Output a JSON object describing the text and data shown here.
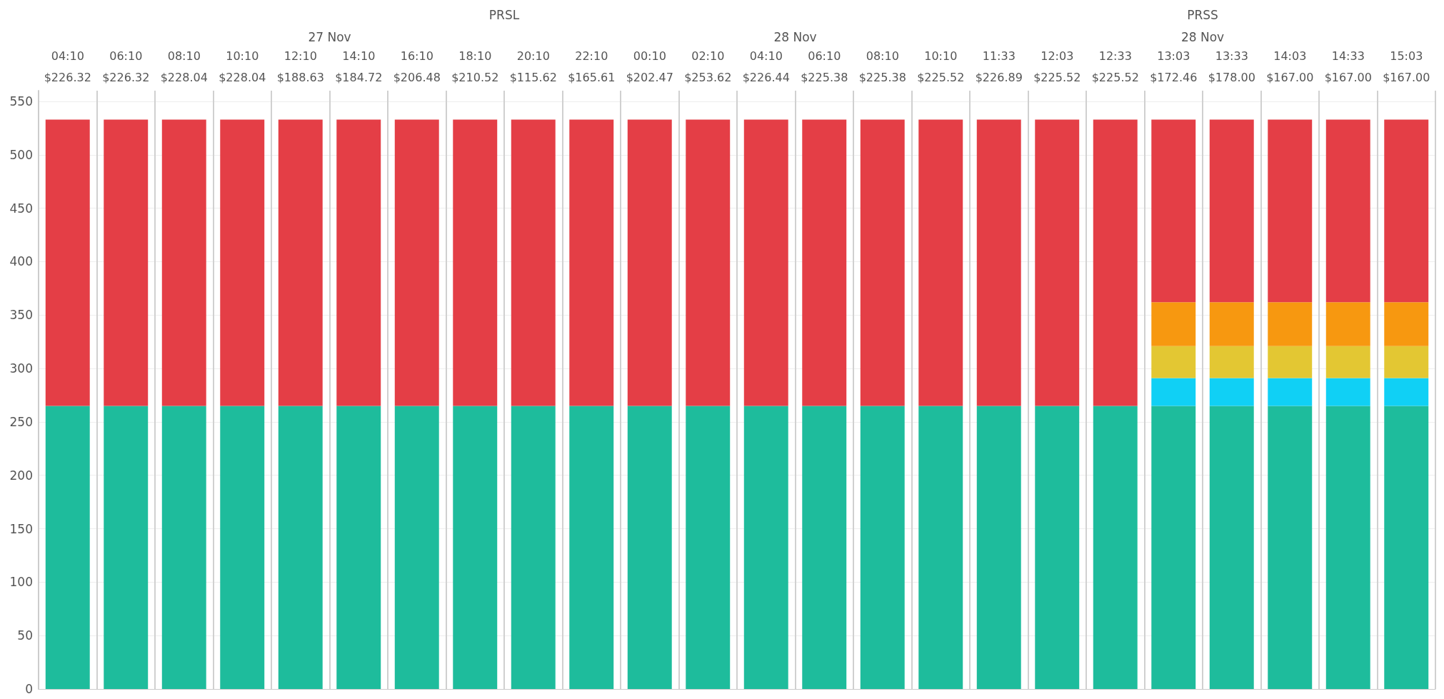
{
  "chart_data": {
    "type": "bar",
    "stacked": true,
    "grid": true,
    "categories": [
      "04:10\n$226.32",
      "06:10\n$226.32",
      "08:10\n$228.04",
      "10:10\n$228.04",
      "12:10\n$188.63",
      "14:10\n$184.72",
      "16:10\n$206.48",
      "18:10\n$210.52",
      "20:10\n$115.62",
      "22:10\n$165.61",
      "00:10\n$202.47",
      "02:10\n$253.62",
      "04:10\n$226.44",
      "06:10\n$225.38",
      "08:10\n$225.38",
      "10:10\n$225.52",
      "11:33\n$226.89",
      "12:03\n$225.52",
      "12:33\n$225.52",
      "13:03\n$172.46",
      "13:33\n$178.00",
      "14:03\n$167.00",
      "14:33\n$167.00",
      "15:03\n$167.00"
    ],
    "series": [
      {
        "color": "#1ebc9c",
        "values": [
          265,
          265,
          265,
          265,
          265,
          265,
          265,
          265,
          265,
          265,
          265,
          265,
          265,
          265,
          265,
          265,
          265,
          265,
          265,
          265,
          265,
          265,
          265,
          265
        ]
      },
      {
        "color": "#10d0f5",
        "values": [
          null,
          null,
          null,
          null,
          null,
          null,
          null,
          null,
          null,
          null,
          null,
          null,
          null,
          null,
          null,
          null,
          null,
          null,
          null,
          26,
          26,
          26,
          26,
          26
        ]
      },
      {
        "color": "#e3c733",
        "values": [
          null,
          null,
          null,
          null,
          null,
          null,
          null,
          null,
          null,
          null,
          null,
          null,
          null,
          null,
          null,
          null,
          null,
          null,
          null,
          30,
          30,
          30,
          30,
          30
        ]
      },
      {
        "color": "#f79810",
        "values": [
          null,
          null,
          null,
          null,
          null,
          null,
          null,
          null,
          null,
          null,
          null,
          null,
          null,
          null,
          null,
          null,
          null,
          null,
          null,
          41,
          41,
          41,
          41,
          41
        ]
      },
      {
        "color": "#e43e46",
        "values": [
          268,
          268,
          268,
          268,
          268,
          268,
          268,
          268,
          268,
          268,
          268,
          268,
          268,
          268,
          268,
          268,
          268,
          268,
          268,
          171,
          171,
          171,
          171,
          171
        ]
      }
    ],
    "ylim": [
      0,
      560
    ],
    "yticks": [
      0,
      50,
      100,
      150,
      200,
      250,
      300,
      350,
      400,
      450,
      500,
      550
    ],
    "annotations": [
      "PRSL",
      "27 Nov",
      "28 Nov",
      "PRSS",
      "28 Nov"
    ]
  }
}
